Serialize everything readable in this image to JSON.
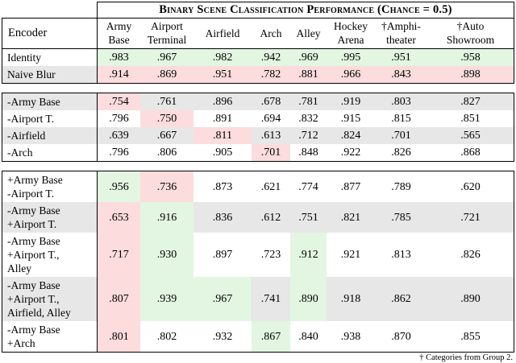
{
  "table": {
    "title": "Binary Scene Classification Performance (Chance = 0.5)",
    "encoder_header": "Encoder",
    "columns": [
      "Army\nBase",
      "Airport\nTerminal",
      "Airfield",
      "Arch",
      "Alley",
      "Hockey\nArena",
      "†Amphi-\ntheater",
      "†Auto\nShowroom"
    ],
    "footnote": "† Categories from Group 2.",
    "sections": [
      {
        "rows": [
          {
            "encoder": "Identity",
            "stripe": "white",
            "values": [
              ".983",
              ".967",
              ".982",
              ".942",
              ".969",
              ".995",
              ".951",
              ".958"
            ],
            "cell_colors": [
              "green",
              "green",
              "green",
              "green",
              "green",
              "green",
              "green",
              "green"
            ]
          },
          {
            "encoder": "Naive Blur",
            "stripe": "gray",
            "values": [
              ".914",
              ".869",
              ".951",
              ".782",
              ".881",
              ".966",
              ".843",
              ".898"
            ],
            "cell_colors": [
              "pink",
              "pink",
              "pink",
              "pink",
              "pink",
              "pink",
              "pink",
              "pink"
            ]
          }
        ]
      },
      {
        "rows": [
          {
            "encoder": "-Army Base",
            "stripe": "gray",
            "values": [
              ".754",
              ".761",
              ".896",
              ".678",
              ".781",
              ".919",
              ".803",
              ".827"
            ],
            "cell_colors": [
              "pink",
              null,
              null,
              null,
              null,
              null,
              null,
              null
            ]
          },
          {
            "encoder": "-Airport T.",
            "stripe": "white",
            "values": [
              ".796",
              ".750",
              ".891",
              ".694",
              ".832",
              ".915",
              ".815",
              ".851"
            ],
            "cell_colors": [
              null,
              "pink",
              null,
              null,
              null,
              null,
              null,
              null
            ]
          },
          {
            "encoder": "-Airfield",
            "stripe": "gray",
            "values": [
              ".639",
              ".667",
              ".811",
              ".613",
              ".712",
              ".824",
              ".701",
              ".565"
            ],
            "cell_colors": [
              null,
              null,
              "pink",
              null,
              null,
              null,
              null,
              null
            ]
          },
          {
            "encoder": "-Arch",
            "stripe": "white",
            "values": [
              ".796",
              ".806",
              ".905",
              ".701",
              ".848",
              ".922",
              ".826",
              ".868"
            ],
            "cell_colors": [
              null,
              null,
              null,
              "pink",
              null,
              null,
              null,
              null
            ]
          }
        ]
      },
      {
        "rows": [
          {
            "encoder": "+Army Base\n-Airport T.",
            "stripe": "white",
            "values": [
              ".956",
              ".736",
              ".873",
              ".621",
              ".774",
              ".877",
              ".789",
              ".620"
            ],
            "cell_colors": [
              "green",
              "pink",
              null,
              null,
              null,
              null,
              null,
              null
            ]
          },
          {
            "encoder": "-Army Base\n+Airport T.",
            "stripe": "gray",
            "values": [
              ".653",
              ".916",
              ".836",
              ".612",
              ".751",
              ".821",
              ".785",
              ".721"
            ],
            "cell_colors": [
              "pink",
              "green",
              null,
              null,
              null,
              null,
              null,
              null
            ]
          },
          {
            "encoder": "-Army Base\n+Airport T.,\nAlley",
            "stripe": "white",
            "values": [
              ".717",
              ".930",
              ".897",
              ".723",
              ".912",
              ".921",
              ".813",
              ".826"
            ],
            "cell_colors": [
              "pink",
              "green",
              null,
              null,
              "green",
              null,
              null,
              null
            ]
          },
          {
            "encoder": "-Army Base\n+Airport T.,\nAirfield, Alley",
            "stripe": "gray",
            "values": [
              ".807",
              ".939",
              ".967",
              ".741",
              ".890",
              ".918",
              ".862",
              ".890"
            ],
            "cell_colors": [
              "pink",
              "green",
              "green",
              null,
              "green",
              null,
              null,
              null
            ]
          },
          {
            "encoder": "-Army Base\n+Arch",
            "stripe": "white",
            "values": [
              ".801",
              ".802",
              ".932",
              ".867",
              ".840",
              ".938",
              ".870",
              ".855"
            ],
            "cell_colors": [
              "pink",
              null,
              null,
              "green",
              null,
              null,
              null,
              null
            ]
          }
        ]
      }
    ]
  },
  "colors": {
    "highlight_green": "#e2f6e2",
    "highlight_pink": "#fcdcdc",
    "stripe_gray": "#e7e7e7",
    "border_black": "#000000"
  }
}
